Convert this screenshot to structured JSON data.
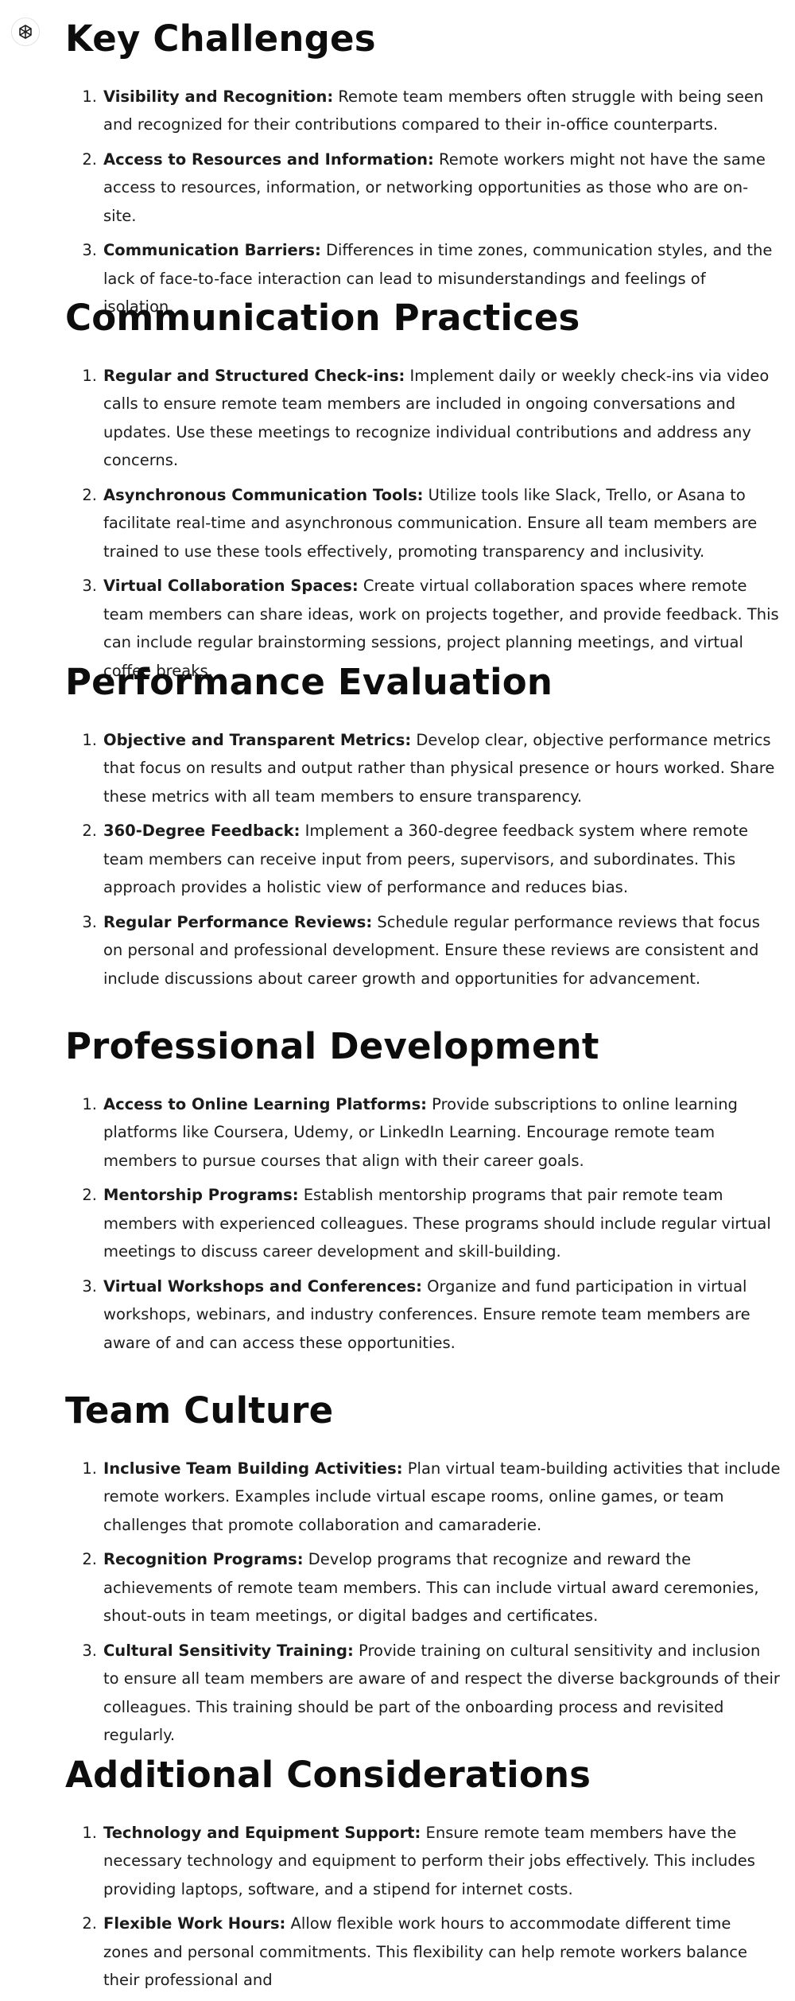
{
  "assistant": {
    "avatar_icon": "openai-logo-icon"
  },
  "sections": [
    {
      "title": "Key Challenges",
      "items": [
        {
          "num": "1.",
          "title": "Visibility and Recognition:",
          "text": " Remote team members often struggle with being seen and recognized for their contributions compared to their in-office counterparts."
        },
        {
          "num": "2.",
          "title": "Access to Resources and Information:",
          "text": " Remote workers might not have the same access to resources, information, or networking opportunities as those who are on-site."
        },
        {
          "num": "3.",
          "title": "Communication Barriers:",
          "text": " Differences in time zones, communication styles, and the lack of face-to-face interaction can lead to misunderstandings and feelings of isolation."
        }
      ]
    },
    {
      "title": "Communication Practices",
      "items": [
        {
          "num": "1.",
          "title": "Regular and Structured Check-ins:",
          "text": " Implement daily or weekly check-ins via video calls to ensure remote team members are included in ongoing conversations and updates. Use these meetings to recognize individual contributions and address any concerns."
        },
        {
          "num": "2.",
          "title": "Asynchronous Communication Tools:",
          "text": " Utilize tools like Slack, Trello, or Asana to facilitate real-time and asynchronous communication. Ensure all team members are trained to use these tools effectively, promoting transparency and inclusivity."
        },
        {
          "num": "3.",
          "title": "Virtual Collaboration Spaces:",
          "text": " Create virtual collaboration spaces where remote team members can share ideas, work on projects together, and provide feedback. This can include regular brainstorming sessions, project planning meetings, and virtual coffee breaks."
        }
      ]
    },
    {
      "title": "Performance Evaluation",
      "items": [
        {
          "num": "1.",
          "title": "Objective and Transparent Metrics:",
          "text": " Develop clear, objective performance metrics that focus on results and output rather than physical presence or hours worked. Share these metrics with all team members to ensure transparency."
        },
        {
          "num": "2.",
          "title": "360-Degree Feedback:",
          "text": " Implement a 360-degree feedback system where remote team members can receive input from peers, supervisors, and subordinates. This approach provides a holistic view of performance and reduces bias."
        },
        {
          "num": "3.",
          "title": "Regular Performance Reviews:",
          "text": " Schedule regular performance reviews that focus on personal and professional development. Ensure these reviews are consistent and include discussions about career growth and opportunities for advancement."
        }
      ]
    },
    {
      "title": "Professional Development",
      "items": [
        {
          "num": "1.",
          "title": "Access to Online Learning Platforms:",
          "text": " Provide subscriptions to online learning platforms like Coursera, Udemy, or LinkedIn Learning. Encourage remote team members to pursue courses that align with their career goals."
        },
        {
          "num": "2.",
          "title": "Mentorship Programs:",
          "text": " Establish mentorship programs that pair remote team members with experienced colleagues. These programs should include regular virtual meetings to discuss career development and skill-building."
        },
        {
          "num": "3.",
          "title": "Virtual Workshops and Conferences:",
          "text": " Organize and fund participation in virtual workshops, webinars, and industry conferences. Ensure remote team members are aware of and can access these opportunities."
        }
      ]
    },
    {
      "title": "Team Culture",
      "items": [
        {
          "num": "1.",
          "title": "Inclusive Team Building Activities:",
          "text": " Plan virtual team-building activities that include remote workers. Examples include virtual escape rooms, online games, or team challenges that promote collaboration and camaraderie."
        },
        {
          "num": "2.",
          "title": "Recognition Programs:",
          "text": " Develop programs that recognize and reward the achievements of remote team members. This can include virtual award ceremonies, shout-outs in team meetings, or digital badges and certificates."
        },
        {
          "num": "3.",
          "title": "Cultural Sensitivity Training:",
          "text": " Provide training on cultural sensitivity and inclusion to ensure all team members are aware of and respect the diverse backgrounds of their colleagues. This training should be part of the onboarding process and revisited regularly."
        }
      ]
    },
    {
      "title": "Additional Considerations",
      "items": [
        {
          "num": "1.",
          "title": "Technology and Equipment Support:",
          "text": " Ensure remote team members have the necessary technology and equipment to perform their jobs effectively. This includes providing laptops, software, and a stipend for internet costs."
        },
        {
          "num": "2.",
          "title": "Flexible Work Hours:",
          "text": " Allow flexible work hours to accommodate different time zones and personal commitments. This flexibility can help remote workers balance their professional and"
        }
      ]
    }
  ]
}
